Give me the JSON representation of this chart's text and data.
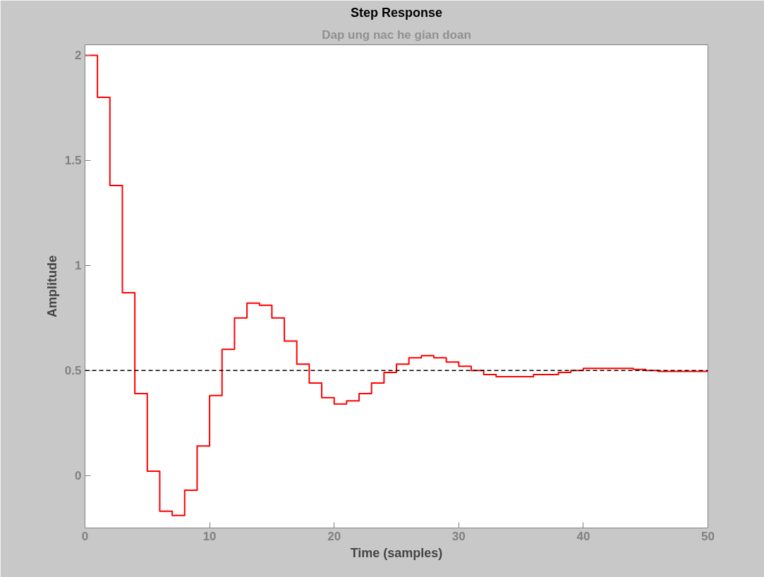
{
  "chart_data": {
    "type": "step",
    "title": "Step Response",
    "subtitle": "Dap ung nac he gian doan",
    "xlabel": "Time (samples)",
    "ylabel": "Amplitude",
    "x": [
      0,
      1,
      2,
      3,
      4,
      5,
      6,
      7,
      8,
      9,
      10,
      11,
      12,
      13,
      14,
      15,
      16,
      17,
      18,
      19,
      20,
      21,
      22,
      23,
      24,
      25,
      26,
      27,
      28,
      29,
      30,
      31,
      32,
      33,
      34,
      35,
      36,
      37,
      38,
      39,
      40,
      41,
      42,
      43,
      44,
      45,
      46,
      47,
      48,
      49,
      50
    ],
    "series": [
      {
        "color": "#ff0000",
        "values": [
          2.0,
          1.8,
          1.38,
          0.87,
          0.39,
          0.02,
          -0.17,
          -0.19,
          -0.07,
          0.14,
          0.38,
          0.6,
          0.75,
          0.82,
          0.81,
          0.75,
          0.64,
          0.53,
          0.44,
          0.37,
          0.34,
          0.355,
          0.39,
          0.44,
          0.49,
          0.53,
          0.56,
          0.57,
          0.56,
          0.54,
          0.52,
          0.5,
          0.48,
          0.47,
          0.47,
          0.47,
          0.48,
          0.48,
          0.49,
          0.5,
          0.51,
          0.51,
          0.51,
          0.51,
          0.505,
          0.5,
          0.495,
          0.495,
          0.495,
          0.495,
          0.495
        ]
      }
    ],
    "xlim": [
      0,
      50
    ],
    "ylim": [
      -0.25,
      2.05
    ],
    "xticks": [
      0,
      10,
      20,
      30,
      40,
      50
    ],
    "yticks": [
      0,
      0.5,
      1,
      1.5,
      2
    ],
    "ref_lines": [
      {
        "axis": "y",
        "value": 0.5,
        "color": "#000000",
        "line_style": "dashed"
      }
    ],
    "grid": false,
    "line_style": "solid"
  }
}
